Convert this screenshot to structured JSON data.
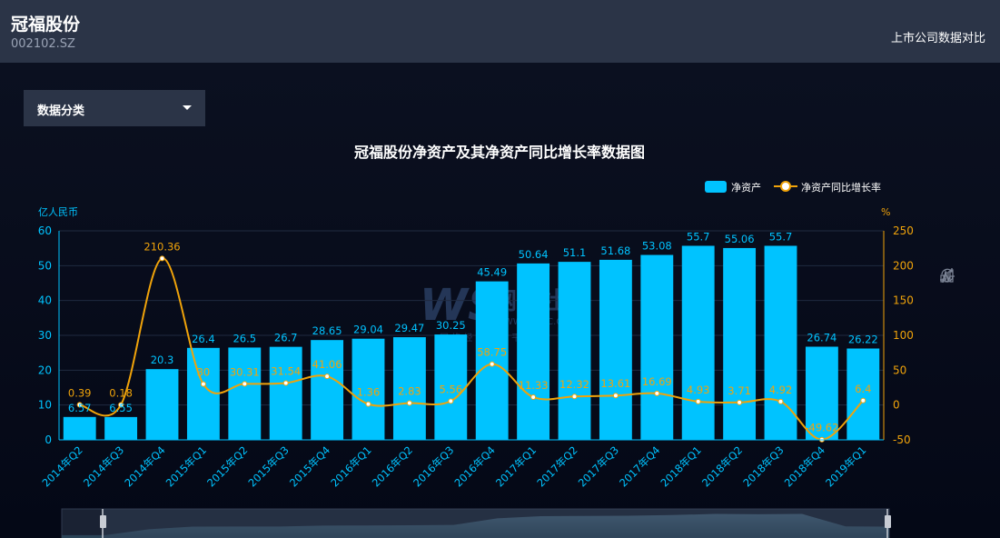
{
  "header": {
    "company": "冠福股份",
    "code": "002102.SZ",
    "compare_link": "上市公司数据对比"
  },
  "dropdown": {
    "label": "数据分类"
  },
  "watermark": {
    "logo": "网经社",
    "url": "WWW.100EC.CN",
    "tagline": "网 络 经 济 服 务 平 台"
  },
  "toolbox": {
    "icons": [
      "line-chart-icon",
      "bar-chart-icon",
      "restore-icon"
    ]
  },
  "colors": {
    "bar": "#00c3ff",
    "line": "#f0a30a",
    "axis_left": "#00c3ff",
    "axis_right": "#f0a30a"
  },
  "chart_data": {
    "type": "bar",
    "title": "冠福股份净资产及其净资产同比增长率数据图",
    "ylabel_left": "亿人民币",
    "ylabel_right": "%",
    "ylim_left": [
      0,
      60
    ],
    "ylim_right": [
      -50,
      250
    ],
    "yticks_left": [
      0,
      10,
      20,
      30,
      40,
      50,
      60
    ],
    "yticks_right": [
      -50,
      0,
      50,
      100,
      150,
      200,
      250
    ],
    "legend_position": "top-right",
    "categories": [
      "2014年Q2",
      "2014年Q3",
      "2014年Q4",
      "2015年Q1",
      "2015年Q2",
      "2015年Q3",
      "2015年Q4",
      "2016年Q1",
      "2016年Q2",
      "2016年Q3",
      "2016年Q4",
      "2017年Q1",
      "2017年Q2",
      "2017年Q3",
      "2017年Q4",
      "2018年Q1",
      "2018年Q2",
      "2018年Q3",
      "2018年Q4",
      "2019年Q1"
    ],
    "series": [
      {
        "name": "净资产",
        "type": "bar",
        "axis": "left",
        "values": [
          6.57,
          6.55,
          20.3,
          26.4,
          26.5,
          26.7,
          28.65,
          29.04,
          29.47,
          30.25,
          45.49,
          50.64,
          51.1,
          51.68,
          53.08,
          55.7,
          55.06,
          55.7,
          26.74,
          26.22
        ]
      },
      {
        "name": "净资产同比增长率",
        "type": "line",
        "axis": "right",
        "values": [
          0.39,
          0.18,
          210.36,
          30,
          30.31,
          31.54,
          41.06,
          1.36,
          2.83,
          5.56,
          58.75,
          11.33,
          12.32,
          13.61,
          16.69,
          4.93,
          3.71,
          4.92,
          -49.62,
          6.4
        ]
      }
    ]
  }
}
